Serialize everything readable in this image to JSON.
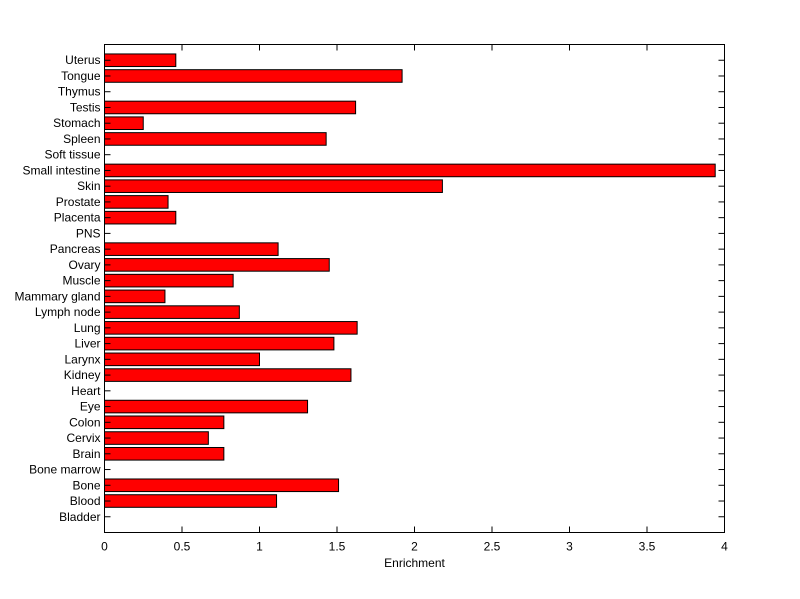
{
  "chart_data": {
    "type": "bar",
    "orientation": "horizontal",
    "title": "",
    "xlabel": "Enrichment",
    "ylabel": "",
    "xlim": [
      0,
      4
    ],
    "xticks": [
      "0",
      "0.5",
      "1",
      "1.5",
      "2",
      "2.5",
      "3",
      "3.5",
      "4"
    ],
    "grid": false,
    "bar_color": "#ff0000",
    "bar_edge_color": "#000000",
    "categories": [
      "Uterus",
      "Tongue",
      "Thymus",
      "Testis",
      "Stomach",
      "Spleen",
      "Soft tissue",
      "Small intestine",
      "Skin",
      "Prostate",
      "Placenta",
      "PNS",
      "Pancreas",
      "Ovary",
      "Muscle",
      "Mammary gland",
      "Lymph node",
      "Lung",
      "Liver",
      "Larynx",
      "Kidney",
      "Heart",
      "Eye",
      "Colon",
      "Cervix",
      "Brain",
      "Bone marrow",
      "Bone",
      "Blood",
      "Bladder"
    ],
    "values": [
      0.46,
      1.92,
      0,
      1.62,
      0.25,
      1.43,
      0,
      3.94,
      2.18,
      0.41,
      0.46,
      0,
      1.12,
      1.45,
      0.83,
      0.39,
      0.87,
      1.63,
      1.48,
      1.0,
      1.59,
      0,
      1.31,
      0.77,
      0.67,
      0.77,
      0,
      1.51,
      1.11,
      0
    ]
  }
}
